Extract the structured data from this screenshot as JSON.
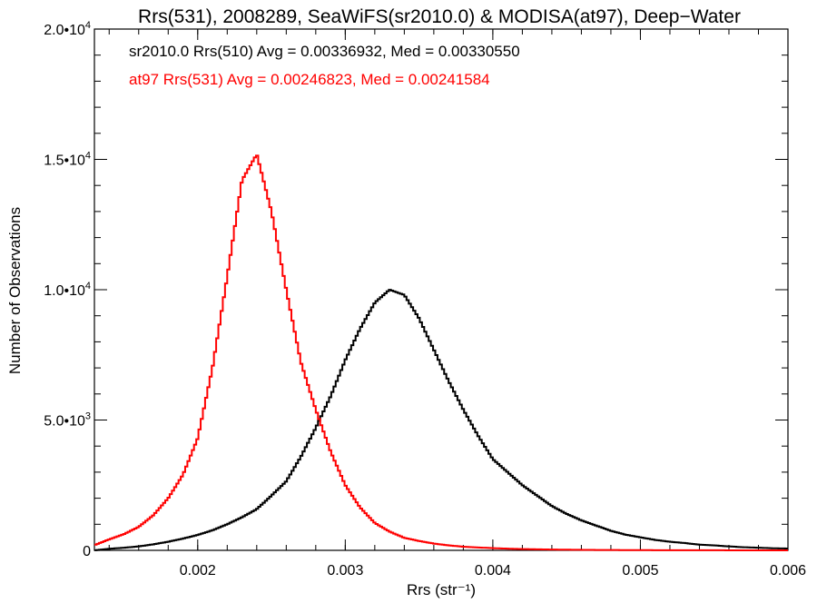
{
  "chart_data": {
    "type": "histogram",
    "title": "Rrs(531), 2008289, SeaWiFS(sr2010.0) & MODISA(at97), Deep−Water",
    "xlabel": "Rrs (str⁻¹)",
    "ylabel": "Number of Observations",
    "xlim": [
      0.0013,
      0.006
    ],
    "ylim": [
      0,
      20000
    ],
    "xticks": [
      {
        "value": 0.002,
        "label": "0.002"
      },
      {
        "value": 0.003,
        "label": "0.003"
      },
      {
        "value": 0.004,
        "label": "0.004"
      },
      {
        "value": 0.005,
        "label": "0.005"
      },
      {
        "value": 0.006,
        "label": "0.006"
      }
    ],
    "yticks": [
      {
        "value": 0,
        "label": "0",
        "exp": ""
      },
      {
        "value": 5000,
        "label": "5.0•10",
        "exp": "3"
      },
      {
        "value": 10000,
        "label": "1.0•10",
        "exp": "4"
      },
      {
        "value": 15000,
        "label": "1.5•10",
        "exp": "4"
      },
      {
        "value": 20000,
        "label": "2.0•10",
        "exp": "4"
      }
    ],
    "annotations": [
      {
        "text": "sr2010.0 Rrs(510) Avg = 0.00336932, Med = 0.00330550",
        "color": "#000000"
      },
      {
        "text": "at97 Rrs(531) Avg = 0.00246823, Med = 0.00241584",
        "color": "#ff0000"
      }
    ],
    "series": [
      {
        "color": "#000000",
        "x": [
          0.0013,
          0.0014,
          0.0015,
          0.0016,
          0.0017,
          0.0018,
          0.0019,
          0.002,
          0.0021,
          0.0022,
          0.0023,
          0.0024,
          0.0025,
          0.0026,
          0.0027,
          0.0028,
          0.0029,
          0.003,
          0.0031,
          0.0032,
          0.0033,
          0.0034,
          0.0035,
          0.0036,
          0.0037,
          0.0038,
          0.0039,
          0.004,
          0.0041,
          0.0042,
          0.0043,
          0.0044,
          0.0045,
          0.0046,
          0.0047,
          0.0048,
          0.0049,
          0.005,
          0.0051,
          0.0052,
          0.0053,
          0.0054,
          0.0055,
          0.0056,
          0.0057,
          0.0058,
          0.0059,
          0.006
        ],
        "y": [
          0,
          60,
          100,
          150,
          230,
          330,
          450,
          590,
          770,
          1000,
          1270,
          1580,
          2100,
          2650,
          3600,
          4700,
          5900,
          7300,
          8500,
          9500,
          10000,
          9800,
          8900,
          7700,
          6500,
          5400,
          4400,
          3500,
          3000,
          2500,
          2100,
          1700,
          1400,
          1150,
          950,
          750,
          600,
          500,
          400,
          330,
          280,
          220,
          190,
          150,
          120,
          100,
          80,
          70
        ]
      },
      {
        "color": "#ff0000",
        "x": [
          0.0013,
          0.0014,
          0.0015,
          0.0016,
          0.0017,
          0.0018,
          0.0019,
          0.002,
          0.0021,
          0.0022,
          0.0023,
          0.0024,
          0.0025,
          0.0026,
          0.0027,
          0.0028,
          0.0029,
          0.003,
          0.0031,
          0.0032,
          0.0033,
          0.0034,
          0.0035,
          0.0036,
          0.0037,
          0.0038,
          0.0039,
          0.004,
          0.0041,
          0.0042,
          0.0043,
          0.0044,
          0.0045,
          0.0046,
          0.0047,
          0.0048,
          0.0049,
          0.005,
          0.0051,
          0.0052,
          0.0053,
          0.0054,
          0.0055,
          0.0056,
          0.0057,
          0.0058,
          0.0059,
          0.006
        ],
        "y": [
          200,
          420,
          620,
          900,
          1350,
          2000,
          2900,
          4300,
          7000,
          10500,
          14200,
          15200,
          13000,
          10000,
          7200,
          5400,
          3800,
          2500,
          1650,
          1050,
          720,
          480,
          360,
          260,
          190,
          140,
          110,
          85,
          65,
          50,
          40,
          30,
          25,
          20,
          15,
          12,
          10,
          8,
          6,
          5,
          4,
          3,
          3,
          2,
          2,
          1,
          1,
          0
        ]
      }
    ]
  }
}
